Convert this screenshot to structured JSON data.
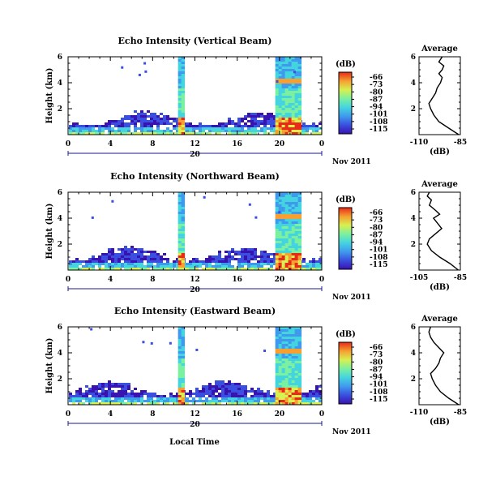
{
  "chart_data": [
    {
      "type": "heatmap",
      "title": "Echo Intensity (Vertical Beam)",
      "ylabel": "Height (km)",
      "x_ticks": [
        "0",
        "4",
        "8",
        "12",
        "16",
        "20",
        "0"
      ],
      "y_ticks": [
        "2",
        "4",
        "6"
      ],
      "xlim": [
        0,
        24
      ],
      "ylim": [
        0,
        6
      ],
      "date_label": "20",
      "date_suffix": "Nov 2011",
      "colorbar": {
        "unit": "(dB)",
        "ticks": [
          "-66",
          "-73",
          "-80",
          "-87",
          "-94",
          "-101",
          "-108",
          "-115"
        ]
      },
      "profile": {
        "title": "Average",
        "xlabel": "(dB)",
        "x_ticks": [
          "-110",
          "-85"
        ],
        "y_ticks": [
          "2",
          "4",
          "6"
        ],
        "xlim": [
          -110,
          -85
        ],
        "ylim": [
          0,
          6
        ],
        "points": [
          [
            -86,
            0
          ],
          [
            -92,
            0.5
          ],
          [
            -98,
            1.0
          ],
          [
            -101,
            1.5
          ],
          [
            -103,
            2.0
          ],
          [
            -104,
            2.4
          ],
          [
            -102,
            2.8
          ],
          [
            -100,
            3.2
          ],
          [
            -99,
            3.6
          ],
          [
            -97,
            4.0
          ],
          [
            -96,
            4.4
          ],
          [
            -98,
            4.7
          ],
          [
            -96,
            5.0
          ],
          [
            -95,
            5.3
          ],
          [
            -98,
            5.6
          ],
          [
            -96,
            6.0
          ]
        ]
      }
    },
    {
      "type": "heatmap",
      "title": "Echo Intensity (Northward Beam)",
      "ylabel": "Height (km)",
      "x_ticks": [
        "0",
        "4",
        "8",
        "12",
        "16",
        "20",
        "0"
      ],
      "y_ticks": [
        "2",
        "4",
        "6"
      ],
      "xlim": [
        0,
        24
      ],
      "ylim": [
        0,
        6
      ],
      "date_label": "20",
      "date_suffix": "Nov 2011",
      "colorbar": {
        "unit": "(dB)",
        "ticks": [
          "-66",
          "-73",
          "-80",
          "-87",
          "-94",
          "-101",
          "-108",
          "-115"
        ]
      },
      "profile": {
        "title": "Average",
        "xlabel": "(dB)",
        "x_ticks": [
          "-105",
          "-85"
        ],
        "y_ticks": [
          "2",
          "4",
          "6"
        ],
        "xlim": [
          -105,
          -85
        ],
        "ylim": [
          0,
          6
        ],
        "points": [
          [
            -86,
            0
          ],
          [
            -90,
            0.5
          ],
          [
            -95,
            1.0
          ],
          [
            -99,
            1.5
          ],
          [
            -101,
            2.0
          ],
          [
            -100,
            2.4
          ],
          [
            -97,
            2.8
          ],
          [
            -94,
            3.2
          ],
          [
            -96,
            3.6
          ],
          [
            -98,
            4.0
          ],
          [
            -95,
            4.3
          ],
          [
            -97,
            4.6
          ],
          [
            -100,
            5.0
          ],
          [
            -99,
            5.4
          ],
          [
            -101,
            5.7
          ],
          [
            -100,
            6.0
          ]
        ]
      }
    },
    {
      "type": "heatmap",
      "title": "Echo Intensity (Eastward Beam)",
      "ylabel": "Height (km)",
      "x_ticks": [
        "0",
        "4",
        "8",
        "12",
        "16",
        "20",
        "0"
      ],
      "y_ticks": [
        "2",
        "4",
        "6"
      ],
      "xlim": [
        0,
        24
      ],
      "ylim": [
        0,
        6
      ],
      "date_label": "20",
      "date_suffix": "Nov 2011",
      "colorbar": {
        "unit": "(dB)",
        "ticks": [
          "-66",
          "-73",
          "-80",
          "-87",
          "-94",
          "-101",
          "-108",
          "-115"
        ]
      },
      "profile": {
        "title": "Average",
        "xlabel": "(dB)",
        "x_ticks": [
          "-110",
          "-85"
        ],
        "y_ticks": [
          "2",
          "4",
          "6"
        ],
        "xlim": [
          -110,
          -85
        ],
        "ylim": [
          0,
          6
        ],
        "points": [
          [
            -86,
            0
          ],
          [
            -92,
            0.5
          ],
          [
            -97,
            1.0
          ],
          [
            -100,
            1.5
          ],
          [
            -102,
            2.0
          ],
          [
            -103,
            2.4
          ],
          [
            -100,
            2.8
          ],
          [
            -98,
            3.2
          ],
          [
            -97,
            3.6
          ],
          [
            -95,
            4.0
          ],
          [
            -98,
            4.4
          ],
          [
            -101,
            4.8
          ],
          [
            -103,
            5.2
          ],
          [
            -104,
            5.6
          ],
          [
            -103,
            6.0
          ]
        ]
      }
    }
  ],
  "footer": {
    "xlabel": "Local Time"
  },
  "colors": {
    "colormap": [
      "#3a12b0",
      "#3a4fe0",
      "#3f9aee",
      "#44d4e0",
      "#7bf0a0",
      "#d8f050",
      "#f5a030",
      "#e82a18"
    ],
    "axis": "#000000",
    "date_line": "#1a1a8c"
  }
}
